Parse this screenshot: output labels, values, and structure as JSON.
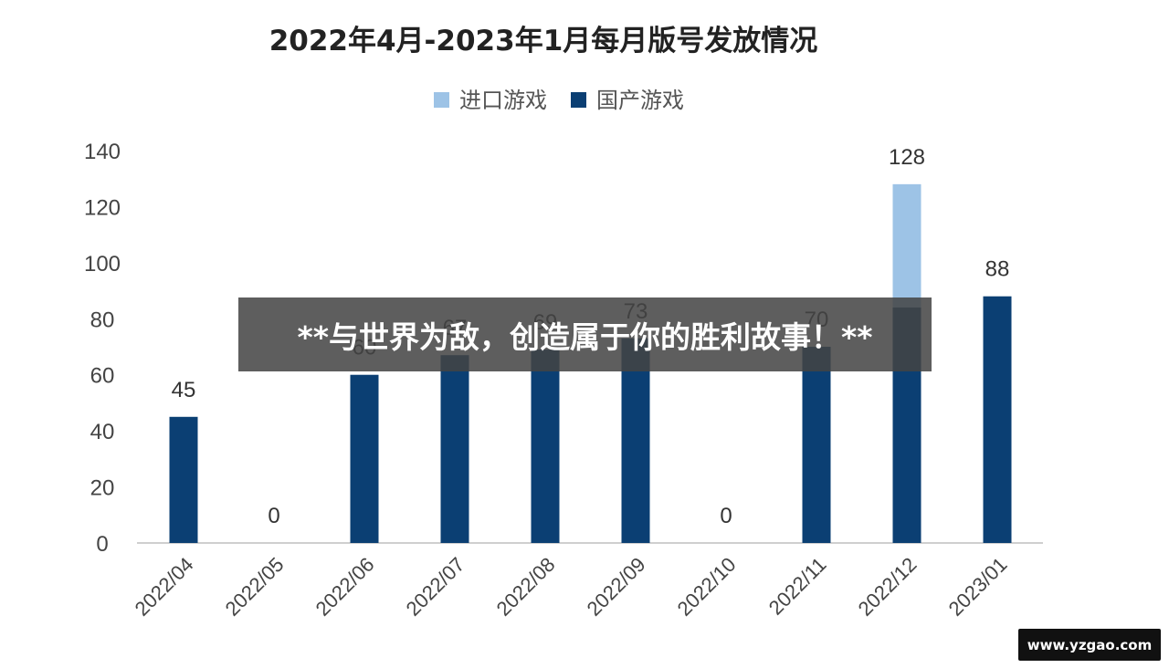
{
  "chart_data": {
    "type": "bar",
    "stacked": true,
    "title": "2022年4月-2023年1月每月版号发放情况",
    "categories": [
      "2022/04",
      "2022/05",
      "2022/06",
      "2022/07",
      "2022/08",
      "2022/09",
      "2022/10",
      "2022/11",
      "2022/12",
      "2023/01"
    ],
    "series": [
      {
        "name": "进口游戏",
        "color": "#9dc3e6",
        "values": [
          0,
          0,
          0,
          0,
          0,
          0,
          0,
          0,
          44,
          0
        ]
      },
      {
        "name": "国产游戏",
        "color": "#0b3f73",
        "values": [
          45,
          0,
          60,
          67,
          69,
          73,
          0,
          70,
          84,
          88
        ]
      }
    ],
    "totals": [
      "45",
      "0",
      "60",
      "67",
      "69",
      "73",
      "0",
      "70",
      "128",
      "88"
    ],
    "ylim": [
      0,
      140
    ],
    "yticks": [
      "0",
      "20",
      "40",
      "60",
      "80",
      "100",
      "120",
      "140"
    ],
    "legend_position": "top-center",
    "grid": false
  },
  "banner": {
    "text": "**与世界为敌，创造属于你的胜利故事！**"
  },
  "watermark": {
    "text": "www.yzgao.com"
  }
}
